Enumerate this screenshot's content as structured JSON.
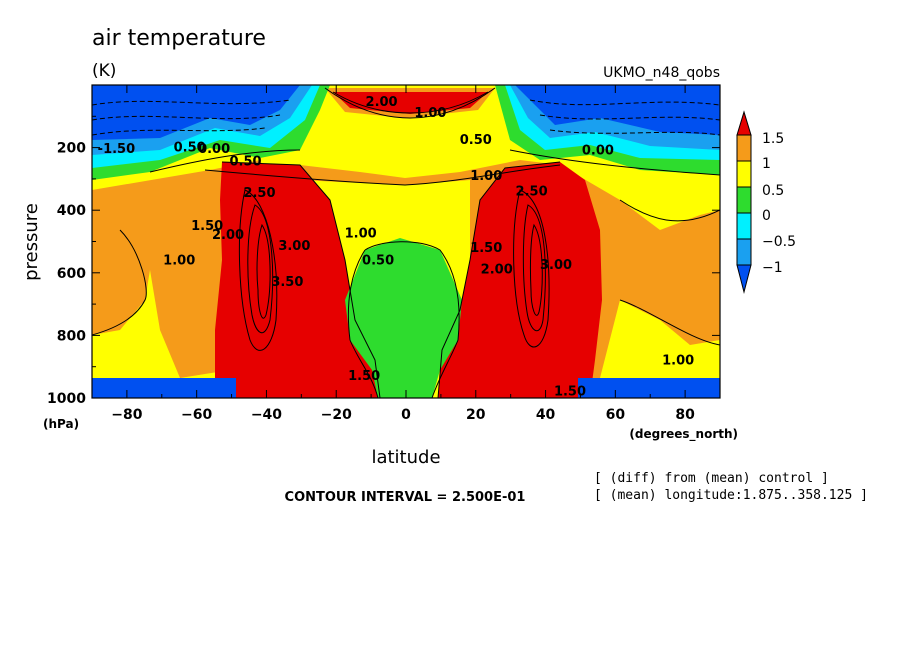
{
  "chart_data": {
    "type": "contour",
    "title": "air temperature",
    "units": "(K)",
    "source": "UKMO_n48_qobs",
    "xlabel": "latitude",
    "x_units": "(degrees_north)",
    "ylabel": "pressure",
    "y_units": "(hPa)",
    "xlim": [
      -90,
      90
    ],
    "ylim": [
      1000,
      0
    ],
    "x_ticks": [
      -80,
      -60,
      -40,
      -20,
      0,
      20,
      40,
      60,
      80
    ],
    "y_ticks": [
      200,
      400,
      600,
      800,
      1000
    ],
    "colorbar": {
      "ticks": [
        "1.5",
        "1",
        "0.5",
        "0",
        "−0.5",
        "−1"
      ],
      "bands": [
        {
          "range": "> 1.5",
          "color": "#e60000"
        },
        {
          "range": "1 to 1.5",
          "color": "#f59b1a"
        },
        {
          "range": "0.5 to 1",
          "color": "#ffff00"
        },
        {
          "range": "0 to 0.5",
          "color": "#2edc2e"
        },
        {
          "range": "-0.5 to 0",
          "color": "#00f0ff"
        },
        {
          "range": "-1 to -0.5",
          "color": "#1aa0f0"
        },
        {
          "range": "< -1",
          "color": "#0050f0"
        }
      ]
    },
    "contour_labels": [
      {
        "text": "2.00",
        "lat": -7,
        "p": 55
      },
      {
        "text": "1.00",
        "lat": 7,
        "p": 90
      },
      {
        "text": "-1.50",
        "lat": -83,
        "p": 205
      },
      {
        "text": "0.50",
        "lat": -62,
        "p": 200
      },
      {
        "text": "0.00",
        "lat": -55,
        "p": 205
      },
      {
        "text": "0.50",
        "lat": -46,
        "p": 245
      },
      {
        "text": "1.00",
        "lat": 23,
        "p": 290
      },
      {
        "text": "0.50",
        "lat": 20,
        "p": 175
      },
      {
        "text": "0.00",
        "lat": 55,
        "p": 210
      },
      {
        "text": "2.50",
        "lat": -42,
        "p": 345
      },
      {
        "text": "2.50",
        "lat": 36,
        "p": 340
      },
      {
        "text": "1.50",
        "lat": -57,
        "p": 450
      },
      {
        "text": "2.00",
        "lat": -51,
        "p": 480
      },
      {
        "text": "1.00",
        "lat": -65,
        "p": 560
      },
      {
        "text": "1.00",
        "lat": -13,
        "p": 475
      },
      {
        "text": "0.50",
        "lat": -8,
        "p": 560
      },
      {
        "text": "3.00",
        "lat": -32,
        "p": 515
      },
      {
        "text": "3.50",
        "lat": -34,
        "p": 630
      },
      {
        "text": "1.50",
        "lat": 23,
        "p": 520
      },
      {
        "text": "2.00",
        "lat": 26,
        "p": 590
      },
      {
        "text": "3.00",
        "lat": 43,
        "p": 575
      },
      {
        "text": "1.00",
        "lat": 78,
        "p": 880
      },
      {
        "text": "1.50",
        "lat": -12,
        "p": 930
      },
      {
        "text": "1.50",
        "lat": 47,
        "p": 980
      }
    ]
  },
  "contour_interval": "CONTOUR INTERVAL = 2.500E-01",
  "footnotes": [
    "[ (diff) from (mean) control ]",
    "[ (mean) longitude:1.875..358.125 ]"
  ]
}
